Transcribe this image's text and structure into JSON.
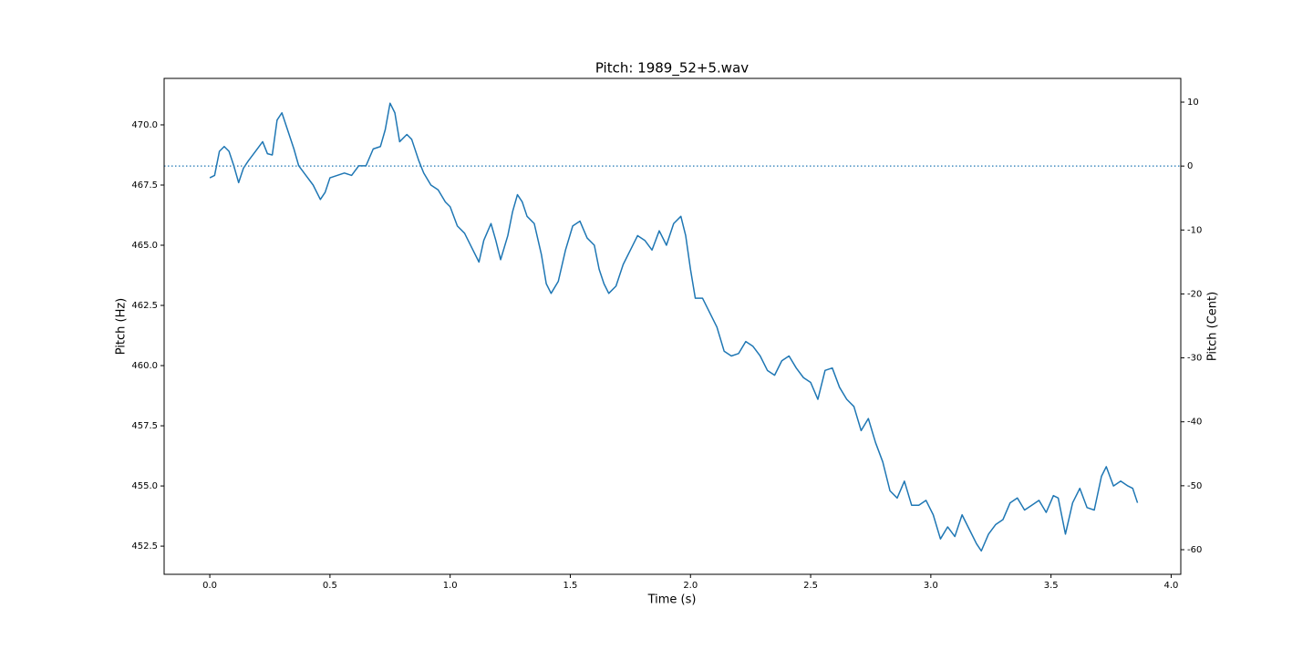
{
  "chart_data": {
    "type": "line",
    "title": "Pitch: 1989_52+5.wav",
    "xlabel": "Time (s)",
    "ylabel": "Pitch (Hz)",
    "y2label": "Pitch (Cent)",
    "color": "#1f77b4",
    "x": [
      0.0,
      0.02,
      0.04,
      0.06,
      0.08,
      0.1,
      0.12,
      0.14,
      0.16,
      0.19,
      0.22,
      0.24,
      0.26,
      0.28,
      0.3,
      0.33,
      0.35,
      0.37,
      0.4,
      0.43,
      0.46,
      0.48,
      0.5,
      0.53,
      0.56,
      0.59,
      0.62,
      0.65,
      0.68,
      0.71,
      0.73,
      0.75,
      0.77,
      0.79,
      0.82,
      0.84,
      0.87,
      0.89,
      0.92,
      0.95,
      0.98,
      1.0,
      1.03,
      1.06,
      1.09,
      1.12,
      1.14,
      1.17,
      1.19,
      1.21,
      1.24,
      1.26,
      1.28,
      1.3,
      1.32,
      1.35,
      1.38,
      1.4,
      1.42,
      1.45,
      1.48,
      1.51,
      1.54,
      1.57,
      1.6,
      1.62,
      1.64,
      1.66,
      1.69,
      1.72,
      1.75,
      1.78,
      1.81,
      1.84,
      1.87,
      1.9,
      1.93,
      1.96,
      1.98,
      2.0,
      2.02,
      2.05,
      2.08,
      2.11,
      2.14,
      2.17,
      2.2,
      2.23,
      2.26,
      2.29,
      2.32,
      2.35,
      2.38,
      2.41,
      2.44,
      2.47,
      2.5,
      2.53,
      2.56,
      2.59,
      2.62,
      2.65,
      2.68,
      2.71,
      2.74,
      2.77,
      2.8,
      2.83,
      2.86,
      2.89,
      2.92,
      2.95,
      2.98,
      3.01,
      3.04,
      3.07,
      3.1,
      3.13,
      3.16,
      3.19,
      3.21,
      3.24,
      3.27,
      3.3,
      3.33,
      3.36,
      3.39,
      3.42,
      3.45,
      3.48,
      3.51,
      3.53,
      3.56,
      3.59,
      3.62,
      3.65,
      3.68,
      3.71,
      3.73,
      3.76,
      3.79,
      3.82,
      3.84,
      3.86
    ],
    "values": [
      467.8,
      467.9,
      468.9,
      469.1,
      468.9,
      468.3,
      467.6,
      468.2,
      468.5,
      468.9,
      469.3,
      468.8,
      468.75,
      470.2,
      470.5,
      469.6,
      469.0,
      468.3,
      467.9,
      467.5,
      466.9,
      467.2,
      467.8,
      467.9,
      468.0,
      467.9,
      468.3,
      468.3,
      469.0,
      469.1,
      469.8,
      470.9,
      470.5,
      469.3,
      469.6,
      469.4,
      468.5,
      468.0,
      467.5,
      467.3,
      466.8,
      466.6,
      465.8,
      465.5,
      464.9,
      464.3,
      465.2,
      465.9,
      465.2,
      464.4,
      465.4,
      466.4,
      467.1,
      466.8,
      466.2,
      465.9,
      464.6,
      463.4,
      463.0,
      463.5,
      464.8,
      465.8,
      466.0,
      465.3,
      465.0,
      464.0,
      463.4,
      463.0,
      463.3,
      464.2,
      464.8,
      465.4,
      465.2,
      464.8,
      465.6,
      465.0,
      465.9,
      466.2,
      465.4,
      464.0,
      462.8,
      462.8,
      462.2,
      461.6,
      460.6,
      460.4,
      460.5,
      461.0,
      460.8,
      460.4,
      459.8,
      459.6,
      460.2,
      460.4,
      459.9,
      459.5,
      459.3,
      458.6,
      459.8,
      459.9,
      459.1,
      458.6,
      458.3,
      457.3,
      457.8,
      456.8,
      456.0,
      454.8,
      454.5,
      455.2,
      454.2,
      454.2,
      454.4,
      453.8,
      452.8,
      453.3,
      452.9,
      453.8,
      453.2,
      452.6,
      452.3,
      453.0,
      453.4,
      453.6,
      454.3,
      454.5,
      454.0,
      454.2,
      454.4,
      453.9,
      454.6,
      454.5,
      453.0,
      454.3,
      454.9,
      454.1,
      454.0,
      455.4,
      455.8,
      455.0,
      455.2,
      455.0,
      454.9,
      454.3
    ],
    "xlim": [
      -0.19,
      4.04
    ],
    "xticks": [
      {
        "value": 0,
        "label": "0.0"
      },
      {
        "value": 0.5,
        "label": "0.5"
      },
      {
        "value": 1,
        "label": "1.0"
      },
      {
        "value": 1.5,
        "label": "1.5"
      },
      {
        "value": 2,
        "label": "2.0"
      },
      {
        "value": 2.5,
        "label": "2.5"
      },
      {
        "value": 3,
        "label": "3.0"
      },
      {
        "value": 3.5,
        "label": "3.5"
      },
      {
        "value": 4,
        "label": "4.0"
      }
    ],
    "ylim": [
      451.33,
      471.93
    ],
    "yticks": [
      452.5,
      {
        "value": 455,
        "label": "455.0"
      },
      457.5,
      {
        "value": 460,
        "label": "460.0"
      },
      462.5,
      {
        "value": 465,
        "label": "465.0"
      },
      467.5,
      {
        "value": 470,
        "label": "470.0"
      }
    ],
    "y2lim": [
      -63.85,
      13.71
    ],
    "y2ticks": [
      -60,
      -50,
      -40,
      -30,
      -20,
      -10,
      0,
      10
    ],
    "reference_line": {
      "axis": "y2",
      "value": 0,
      "style": "dotted"
    }
  }
}
